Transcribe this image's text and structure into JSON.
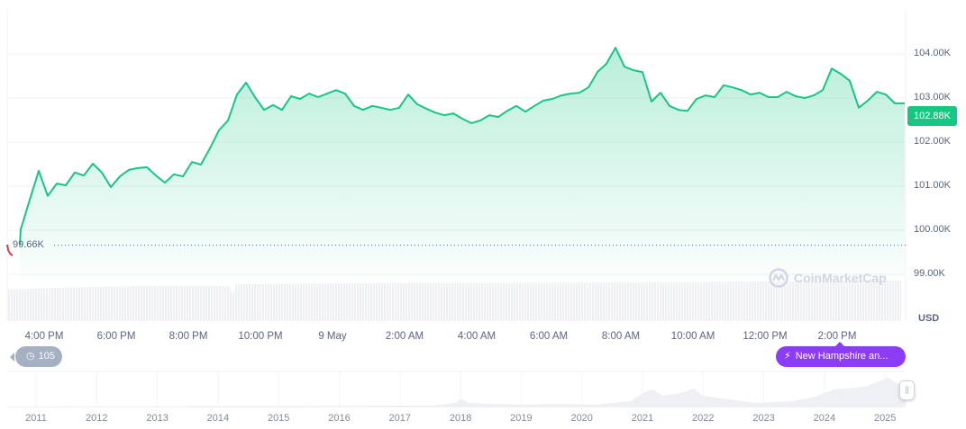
{
  "chart_data": {
    "type": "area",
    "currency_label": "USD",
    "current_price_label": "102.88K",
    "open_price_label": "99.66K",
    "open_price": 99.66,
    "y_ticks": [
      "104.00K",
      "103.00K",
      "102.00K",
      "101.00K",
      "100.00K",
      "99.00K"
    ],
    "y_tick_values": [
      104,
      103,
      102,
      101,
      100,
      99
    ],
    "ylim": [
      98.9,
      105.0
    ],
    "x_ticks": [
      "4:00 PM",
      "6:00 PM",
      "8:00 PM",
      "10:00 PM",
      "9 May",
      "2:00 AM",
      "4:00 AM",
      "6:00 AM",
      "8:00 AM",
      "10:00 AM",
      "12:00 PM",
      "2:00 PM"
    ],
    "line_color": "#16c784",
    "times": [
      "15:20",
      "15:35",
      "15:50",
      "16:05",
      "16:20",
      "16:35",
      "16:50",
      "17:05",
      "17:20",
      "17:35",
      "17:50",
      "18:05",
      "18:20",
      "18:35",
      "18:50",
      "19:05",
      "19:20",
      "19:35",
      "19:50",
      "20:05",
      "20:20",
      "20:35",
      "20:50",
      "21:05",
      "21:20",
      "21:35",
      "21:50",
      "22:05",
      "22:20",
      "22:35",
      "22:50",
      "23:05",
      "23:20",
      "23:35",
      "23:50",
      "00:05",
      "00:20",
      "00:35",
      "00:50",
      "01:05",
      "01:20",
      "01:35",
      "01:50",
      "02:05",
      "02:20",
      "02:35",
      "02:50",
      "03:05",
      "03:20",
      "03:35",
      "03:50",
      "04:05",
      "04:20",
      "04:35",
      "04:50",
      "05:05",
      "05:20",
      "05:35",
      "05:50",
      "06:05",
      "06:20",
      "06:35",
      "06:50",
      "07:05",
      "07:20",
      "07:35",
      "07:50",
      "08:05",
      "08:20",
      "08:35",
      "08:50",
      "09:05",
      "09:20",
      "09:35",
      "09:50",
      "10:05",
      "10:20",
      "10:35",
      "10:50",
      "11:05",
      "11:20",
      "11:35",
      "11:50",
      "12:05",
      "12:20",
      "12:35",
      "12:50",
      "13:05",
      "13:20",
      "13:35",
      "13:50",
      "14:05",
      "14:20",
      "14:35",
      "14:50",
      "15:05",
      "15:20",
      "15:35",
      "15:50"
    ],
    "values_k": [
      100.02,
      100.69,
      101.35,
      100.78,
      101.06,
      101.02,
      101.31,
      101.24,
      101.51,
      101.31,
      100.98,
      101.22,
      101.37,
      101.41,
      101.43,
      101.24,
      101.08,
      101.27,
      101.22,
      101.55,
      101.49,
      101.86,
      102.27,
      102.49,
      103.08,
      103.35,
      103.02,
      102.73,
      102.84,
      102.73,
      103.04,
      102.98,
      103.1,
      103.02,
      103.1,
      103.18,
      103.1,
      102.82,
      102.73,
      102.82,
      102.78,
      102.73,
      102.78,
      103.08,
      102.86,
      102.76,
      102.67,
      102.61,
      102.65,
      102.53,
      102.43,
      102.49,
      102.61,
      102.57,
      102.71,
      102.82,
      102.69,
      102.82,
      102.94,
      102.98,
      103.06,
      103.1,
      103.12,
      103.24,
      103.59,
      103.78,
      104.14,
      103.71,
      103.63,
      103.59,
      102.92,
      103.12,
      102.82,
      102.73,
      102.71,
      102.98,
      103.06,
      103.02,
      103.29,
      103.24,
      103.18,
      103.08,
      103.12,
      103.02,
      103.02,
      103.14,
      103.04,
      103.0,
      103.06,
      103.18,
      103.67,
      103.55,
      103.39,
      102.78,
      102.94,
      103.14,
      103.08,
      102.88,
      102.88
    ],
    "navigator_years": [
      "2011",
      "2012",
      "2013",
      "2014",
      "2015",
      "2016",
      "2017",
      "2018",
      "2019",
      "2020",
      "2021",
      "2022",
      "2023",
      "2024",
      "2025"
    ]
  },
  "watermark": "CoinMarketCap",
  "history_button": {
    "count": "105",
    "icon": "history-icon"
  },
  "news_button": {
    "label": "New Hampshire an...",
    "icon": "lightning-icon"
  }
}
